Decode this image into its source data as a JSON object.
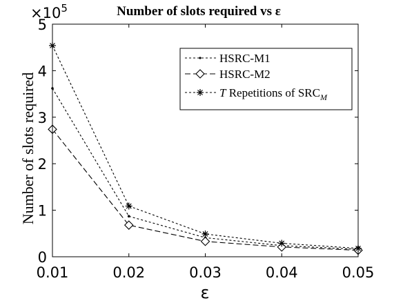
{
  "chart_data": {
    "type": "line",
    "title": "Number of slots required vs ε",
    "xlabel": "ε",
    "ylabel": "Number of slots required",
    "exponent_label": "×10",
    "exponent_power": "5",
    "x": [
      0.01,
      0.02,
      0.03,
      0.04,
      0.05
    ],
    "x_tick_labels": [
      "0.01",
      "0.02",
      "0.03",
      "0.04",
      "0.05"
    ],
    "y_tick_labels": [
      "0",
      "1",
      "2",
      "3",
      "4",
      "5"
    ],
    "xlim": [
      0.01,
      0.05
    ],
    "ylim": [
      0,
      500000
    ],
    "y_scale_multiplier": 100000,
    "grid": false,
    "legend_position": "top-right",
    "series": [
      {
        "name": "HSRC-M1",
        "marker": "dot",
        "line": "dotted",
        "color": "#000000",
        "values": [
          362000,
          87000,
          41000,
          24000,
          16000
        ]
      },
      {
        "name": "HSRC-M2",
        "marker": "diamond",
        "line": "dashed",
        "color": "#000000",
        "values": [
          274000,
          68000,
          33000,
          21000,
          14000
        ]
      },
      {
        "name_italic": "T",
        "name": "Repetitions of SRC",
        "name_sub": "M",
        "marker": "asterisk",
        "line": "dotted",
        "color": "#000000",
        "values": [
          454000,
          109000,
          49000,
          29000,
          18000
        ]
      }
    ]
  }
}
